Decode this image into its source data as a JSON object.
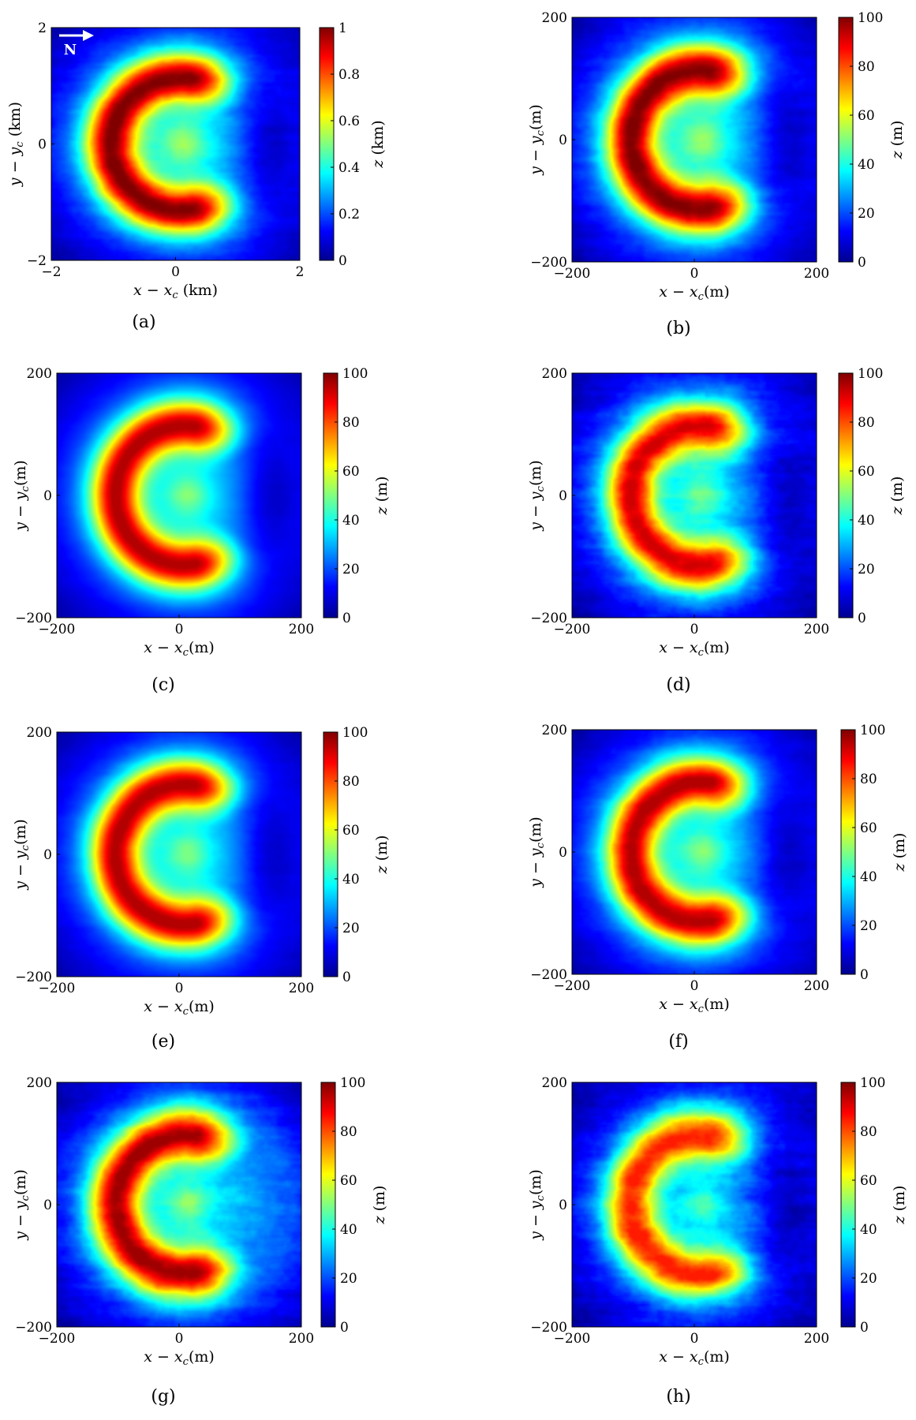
{
  "colormap": [
    "#00008f",
    "#0000ff",
    "#0080ff",
    "#00ffff",
    "#80ff80",
    "#ffff00",
    "#ff8000",
    "#ff0000",
    "#800000"
  ],
  "north_arrow_label": "N",
  "chart_data": [
    {
      "id": "a",
      "label": "(a)",
      "type": "heatmap",
      "north_arrow": true,
      "xlabel": "x − x",
      "xlabel_sub": "c",
      "xlabel_unit": " (km)",
      "ylabel": "y − y",
      "ylabel_sub": "c",
      "ylabel_unit": " (km)",
      "xticks": [
        "−2",
        "0",
        "2"
      ],
      "yticks": [
        "2",
        "0",
        "−2"
      ],
      "xlim": [
        -2,
        2
      ],
      "ylim": [
        -2,
        2
      ],
      "colorbar": {
        "label": "z",
        "unit": " (km)",
        "range": [
          0,
          1
        ],
        "ticks": [
          "1",
          "0.8",
          "0.6",
          "0.4",
          "0.2",
          "0"
        ]
      },
      "peak_value": 1.0,
      "roughness": 0.45,
      "east_depression": true
    },
    {
      "id": "b",
      "label": "(b)",
      "type": "heatmap",
      "xlabel": "x − x",
      "xlabel_sub": "c",
      "xlabel_unit": "(m)",
      "ylabel": "y − y",
      "ylabel_sub": "c",
      "ylabel_unit": "(m)",
      "xticks": [
        "−200",
        "0",
        "200"
      ],
      "yticks": [
        "200",
        "0",
        "−200"
      ],
      "xlim": [
        -200,
        200
      ],
      "ylim": [
        -200,
        200
      ],
      "colorbar": {
        "label": "z",
        "unit": " (m)",
        "range": [
          0,
          100
        ],
        "ticks": [
          "100",
          "80",
          "60",
          "40",
          "20",
          "0"
        ]
      },
      "peak_value": 100,
      "roughness": 0.5,
      "east_depression": true
    },
    {
      "id": "c",
      "label": "(c)",
      "type": "heatmap",
      "xlabel": "x − x",
      "xlabel_sub": "c",
      "xlabel_unit": "(m)",
      "ylabel": "y − y",
      "ylabel_sub": "c",
      "ylabel_unit": "(m)",
      "xticks": [
        "−200",
        "0",
        "200"
      ],
      "yticks": [
        "200",
        "0",
        "−200"
      ],
      "xlim": [
        -200,
        200
      ],
      "ylim": [
        -200,
        200
      ],
      "colorbar": {
        "label": "z",
        "unit": " (m)",
        "range": [
          0,
          100
        ],
        "ticks": [
          "100",
          "80",
          "60",
          "40",
          "20",
          "0"
        ]
      },
      "peak_value": 95,
      "roughness": 0.15,
      "east_depression": true
    },
    {
      "id": "d",
      "label": "(d)",
      "type": "heatmap",
      "xlabel": "x − x",
      "xlabel_sub": "c",
      "xlabel_unit": "(m)",
      "ylabel": "y − y",
      "ylabel_sub": "c",
      "ylabel_unit": "(m)",
      "xticks": [
        "−200",
        "0",
        "200"
      ],
      "yticks": [
        "200",
        "0",
        "−200"
      ],
      "xlim": [
        -200,
        200
      ],
      "ylim": [
        -200,
        200
      ],
      "colorbar": {
        "label": "z",
        "unit": " (m)",
        "range": [
          0,
          100
        ],
        "ticks": [
          "100",
          "80",
          "60",
          "40",
          "20",
          "0"
        ]
      },
      "peak_value": 92,
      "roughness": 0.8,
      "east_depression": true
    },
    {
      "id": "e",
      "label": "(e)",
      "type": "heatmap",
      "xlabel": "x − x",
      "xlabel_sub": "c",
      "xlabel_unit": "(m)",
      "ylabel": "y − y",
      "ylabel_sub": "c",
      "ylabel_unit": "(m)",
      "xticks": [
        "−200",
        "0",
        "200"
      ],
      "yticks": [
        "200",
        "0",
        "−200"
      ],
      "xlim": [
        -200,
        200
      ],
      "ylim": [
        -200,
        200
      ],
      "colorbar": {
        "label": "z",
        "unit": " (m)",
        "range": [
          0,
          100
        ],
        "ticks": [
          "100",
          "80",
          "60",
          "40",
          "20",
          "0"
        ]
      },
      "peak_value": 95,
      "roughness": 0.25,
      "east_depression": true
    },
    {
      "id": "f",
      "label": "(f)",
      "type": "heatmap",
      "xlabel": "x − x",
      "xlabel_sub": "c",
      "xlabel_unit": "(m)",
      "ylabel": "y − y",
      "ylabel_sub": "c",
      "ylabel_unit": "(m)",
      "xticks": [
        "−200",
        "0",
        "200"
      ],
      "yticks": [
        "200",
        "0",
        "−200"
      ],
      "xlim": [
        -200,
        200
      ],
      "ylim": [
        -200,
        200
      ],
      "colorbar": {
        "label": "z",
        "unit": " (m)",
        "range": [
          0,
          100
        ],
        "ticks": [
          "100",
          "80",
          "60",
          "40",
          "20",
          "0"
        ]
      },
      "peak_value": 95,
      "roughness": 0.45,
      "east_depression": true
    },
    {
      "id": "g",
      "label": "(g)",
      "type": "heatmap",
      "xlabel": "x − x",
      "xlabel_sub": "c",
      "xlabel_unit": "(m)",
      "ylabel": "y − y",
      "ylabel_sub": "c",
      "ylabel_unit": "(m)",
      "xticks": [
        "−200",
        "0",
        "200"
      ],
      "yticks": [
        "200",
        "0",
        "−200"
      ],
      "xlim": [
        -200,
        200
      ],
      "ylim": [
        -200,
        200
      ],
      "colorbar": {
        "label": "z",
        "unit": " (m)",
        "range": [
          0,
          100
        ],
        "ticks": [
          "100",
          "80",
          "60",
          "40",
          "20",
          "0"
        ]
      },
      "peak_value": 97,
      "roughness": 0.7,
      "east_depression": false
    },
    {
      "id": "h",
      "label": "(h)",
      "type": "heatmap",
      "xlabel": "x − x",
      "xlabel_sub": "c",
      "xlabel_unit": "(m)",
      "ylabel": "y − y",
      "ylabel_sub": "c",
      "ylabel_unit": "(m)",
      "xticks": [
        "−200",
        "0",
        "200"
      ],
      "yticks": [
        "200",
        "0",
        "−200"
      ],
      "xlim": [
        -200,
        200
      ],
      "ylim": [
        -200,
        200
      ],
      "colorbar": {
        "label": "z",
        "unit": " (m)",
        "range": [
          0,
          100
        ],
        "ticks": [
          "100",
          "80",
          "60",
          "40",
          "20",
          "0"
        ]
      },
      "peak_value": 85,
      "roughness": 1.0,
      "east_depression": true
    }
  ]
}
